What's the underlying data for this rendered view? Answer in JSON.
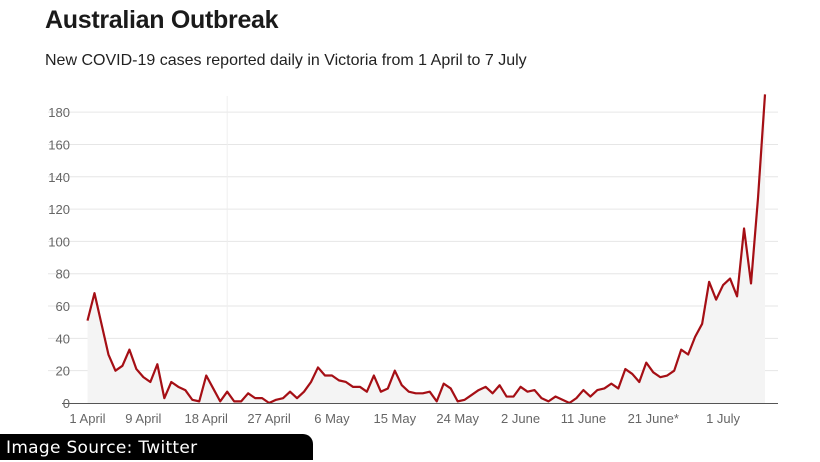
{
  "header": {
    "title": "Australian Outbreak",
    "subtitle": "New COVID-19 cases reported daily in Victoria from 1 April to 7 July"
  },
  "credit": "Image Source: Twitter",
  "colors": {
    "line": "#a50f15",
    "area": "#f4f4f4",
    "grid": "#e6e6e6",
    "axis": "#555555"
  },
  "chart_data": {
    "type": "area",
    "title": "Australian Outbreak",
    "subtitle": "New COVID-19 cases reported daily in Victoria from 1 April to 7 July",
    "x_start": "1 April",
    "x_end": "7 July",
    "xlabel": "",
    "ylabel": "",
    "ylim": [
      0,
      190
    ],
    "yticks": [
      0,
      20,
      40,
      60,
      80,
      100,
      120,
      140,
      160,
      180
    ],
    "xtick_labels": [
      "1 April",
      "9 April",
      "18 April",
      "27 April",
      "6 May",
      "15 May",
      "24 May",
      "2 June",
      "11 June",
      "21 June*",
      "1 July"
    ],
    "xtick_days": [
      0,
      8,
      17,
      26,
      35,
      44,
      53,
      62,
      71,
      81,
      91
    ],
    "grid": true,
    "legend": "none",
    "series": [
      {
        "values": [
          51,
          68,
          49,
          30,
          20,
          23,
          33,
          21,
          16,
          13,
          24,
          3,
          13,
          10,
          8,
          2,
          1,
          17,
          9,
          1,
          7,
          1,
          1,
          6,
          3,
          3,
          0,
          2,
          3,
          7,
          3,
          7,
          13,
          22,
          17,
          17,
          14,
          13,
          10,
          10,
          7,
          17,
          7,
          9,
          20,
          11,
          7,
          6,
          6,
          7,
          1,
          12,
          9,
          1,
          2,
          5,
          8,
          10,
          6,
          11,
          4,
          4,
          10,
          7,
          8,
          3,
          1,
          4,
          2,
          0,
          3,
          8,
          4,
          8,
          9,
          12,
          9,
          21,
          18,
          13,
          25,
          19,
          16,
          17,
          20,
          33,
          30,
          41,
          49,
          75,
          64,
          73,
          77,
          66,
          108,
          74,
          127,
          191
        ]
      }
    ]
  }
}
